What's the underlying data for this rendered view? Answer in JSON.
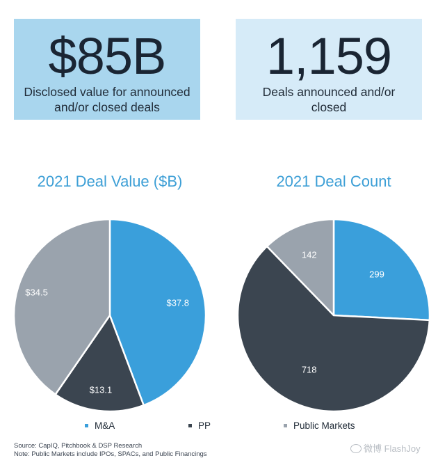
{
  "stats": {
    "value": {
      "number": "$85B",
      "caption_line1": "Disclosed value for announced",
      "caption_line2": "and/or closed deals"
    },
    "count": {
      "number": "1,159",
      "caption_line1": "Deals announced and/or",
      "caption_line2": "closed"
    }
  },
  "chart_data": [
    {
      "type": "pie",
      "title": "2021 Deal Value ($B)",
      "categories": [
        "M&A",
        "PP",
        "Public Markets"
      ],
      "values": [
        37.8,
        13.1,
        34.5
      ],
      "labels": [
        "$37.8",
        "$13.1",
        "$34.5"
      ],
      "colors": [
        "#3a9fdb",
        "#3b4550",
        "#9aa3ad"
      ],
      "legend": "bottom"
    },
    {
      "type": "pie",
      "title": "2021 Deal Count",
      "categories": [
        "M&A",
        "PP",
        "Public Markets"
      ],
      "values": [
        299,
        718,
        142
      ],
      "labels": [
        "299",
        "718",
        "142"
      ],
      "colors": [
        "#3a9fdb",
        "#3b4550",
        "#9aa3ad"
      ],
      "legend": "bottom"
    }
  ],
  "legend": {
    "items": [
      {
        "label": "M&A",
        "color": "#3a9fdb"
      },
      {
        "label": "PP",
        "color": "#3b4550"
      },
      {
        "label": "Public Markets",
        "color": "#9aa3ad"
      }
    ]
  },
  "footnotes": {
    "source": "Source: CapIQ, Pitchbook & DSP Research",
    "note": "Note: Public Markets include IPOs, SPACs, and Public Financings"
  },
  "watermark": {
    "text": "微博 FlashJoy",
    "icon": "weibo-logo-icon"
  }
}
